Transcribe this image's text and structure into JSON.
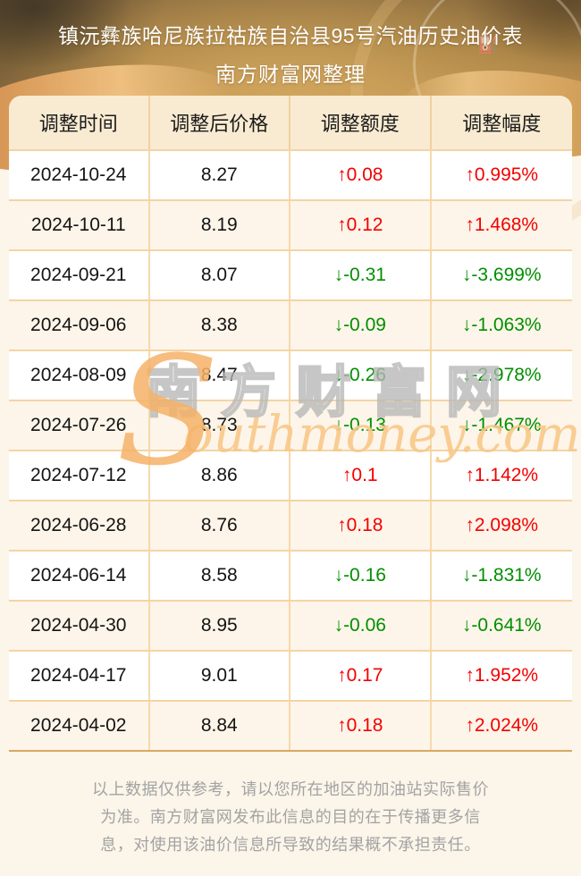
{
  "header": {
    "title": "镇沅彝族哈尼族拉祜族自治县95号汽油历史油价表",
    "subtitle": "南方财富网整理"
  },
  "table": {
    "columns": [
      "调整时间",
      "调整后价格",
      "调整额度",
      "调整幅度"
    ],
    "rows": [
      {
        "date": "2024-10-24",
        "price": "8.27",
        "change": "↑0.08",
        "change_pct": "↑0.995%",
        "direction": "up"
      },
      {
        "date": "2024-10-11",
        "price": "8.19",
        "change": "↑0.12",
        "change_pct": "↑1.468%",
        "direction": "up"
      },
      {
        "date": "2024-09-21",
        "price": "8.07",
        "change": "↓-0.31",
        "change_pct": "↓-3.699%",
        "direction": "down"
      },
      {
        "date": "2024-09-06",
        "price": "8.38",
        "change": "↓-0.09",
        "change_pct": "↓-1.063%",
        "direction": "down"
      },
      {
        "date": "2024-08-09",
        "price": "8.47",
        "change": "↓-0.26",
        "change_pct": "↓-2.978%",
        "direction": "down"
      },
      {
        "date": "2024-07-26",
        "price": "8.73",
        "change": "↓-0.13",
        "change_pct": "↓-1.467%",
        "direction": "down"
      },
      {
        "date": "2024-07-12",
        "price": "8.86",
        "change": "↑0.1",
        "change_pct": "↑1.142%",
        "direction": "up"
      },
      {
        "date": "2024-06-28",
        "price": "8.76",
        "change": "↑0.18",
        "change_pct": "↑2.098%",
        "direction": "up"
      },
      {
        "date": "2024-06-14",
        "price": "8.58",
        "change": "↓-0.16",
        "change_pct": "↓-1.831%",
        "direction": "down"
      },
      {
        "date": "2024-04-30",
        "price": "8.95",
        "change": "↓-0.06",
        "change_pct": "↓-0.641%",
        "direction": "down"
      },
      {
        "date": "2024-04-17",
        "price": "9.01",
        "change": "↑0.17",
        "change_pct": "↑1.952%",
        "direction": "up"
      },
      {
        "date": "2024-04-02",
        "price": "8.84",
        "change": "↑0.18",
        "change_pct": "↑2.024%",
        "direction": "up"
      }
    ]
  },
  "watermark": {
    "cn": "南方财富网",
    "en_initial": "S",
    "en_rest": "outhmoney.com"
  },
  "footer": {
    "disclaimer": "以上数据仅供参考，请以您所在地区的加油站实际售价为准。南方财富网发布此信息的目的在于传播更多信息，对使用该油价信息所导致的结果概不承担责任。"
  },
  "icons": {
    "pump": "⛽"
  },
  "colors": {
    "up": "#f40000",
    "down": "#008f00",
    "hero_gold": "#c09150",
    "table_header_bg": "#f9ebd1",
    "row_alt_bg": "#fdf5e9",
    "border_tan": "#f4d4a4"
  },
  "chart_data": {
    "type": "table",
    "title": "镇沅彝族哈尼族拉祜族自治县95号汽油历史油价表（南方财富网整理）",
    "columns": [
      "调整时间",
      "调整后价格",
      "调整额度",
      "调整幅度"
    ],
    "rows": [
      [
        "2024-10-24",
        8.27,
        0.08,
        0.995
      ],
      [
        "2024-10-11",
        8.19,
        0.12,
        1.468
      ],
      [
        "2024-09-21",
        8.07,
        -0.31,
        -3.699
      ],
      [
        "2024-09-06",
        8.38,
        -0.09,
        -1.063
      ],
      [
        "2024-08-09",
        8.47,
        -0.26,
        -2.978
      ],
      [
        "2024-07-26",
        8.73,
        -0.13,
        -1.467
      ],
      [
        "2024-07-12",
        8.86,
        0.1,
        1.142
      ],
      [
        "2024-06-28",
        8.76,
        0.18,
        2.098
      ],
      [
        "2024-06-14",
        8.58,
        -0.16,
        -1.831
      ],
      [
        "2024-04-30",
        8.95,
        -0.06,
        -0.641
      ],
      [
        "2024-04-17",
        9.01,
        0.17,
        1.952
      ],
      [
        "2024-04-02",
        8.84,
        0.18,
        2.024
      ]
    ]
  }
}
